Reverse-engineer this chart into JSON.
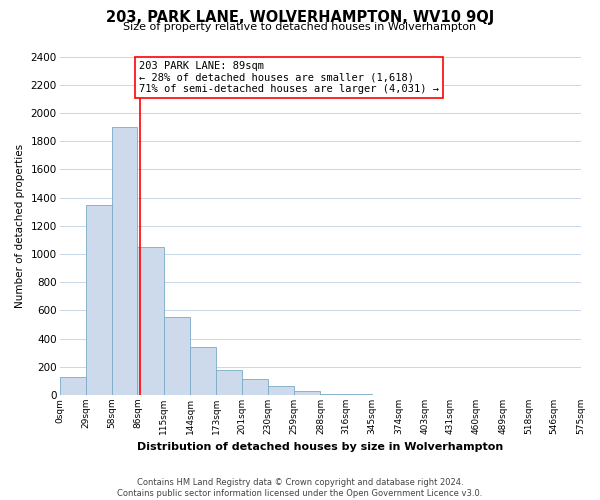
{
  "title": "203, PARK LANE, WOLVERHAMPTON, WV10 9QJ",
  "subtitle": "Size of property relative to detached houses in Wolverhampton",
  "xlabel": "Distribution of detached houses by size in Wolverhampton",
  "ylabel": "Number of detached properties",
  "bar_color": "#ccdaeb",
  "bar_edge_color": "#7aaac8",
  "bin_edges": [
    0,
    29,
    58,
    86,
    115,
    144,
    173,
    201,
    230,
    259,
    288,
    316,
    345,
    374,
    403,
    431,
    460,
    489,
    518,
    546,
    575
  ],
  "bin_labels": [
    "0sqm",
    "29sqm",
    "58sqm",
    "86sqm",
    "115sqm",
    "144sqm",
    "173sqm",
    "201sqm",
    "230sqm",
    "259sqm",
    "288sqm",
    "316sqm",
    "345sqm",
    "374sqm",
    "403sqm",
    "431sqm",
    "460sqm",
    "489sqm",
    "518sqm",
    "546sqm",
    "575sqm"
  ],
  "bar_heights": [
    130,
    1350,
    1900,
    1050,
    550,
    340,
    175,
    115,
    65,
    30,
    10,
    5,
    2,
    1,
    1,
    0,
    1,
    0,
    1,
    0
  ],
  "red_line_x": 89,
  "annotation_title": "203 PARK LANE: 89sqm",
  "annotation_line1": "← 28% of detached houses are smaller (1,618)",
  "annotation_line2": "71% of semi-detached houses are larger (4,031) →",
  "ylim": [
    0,
    2400
  ],
  "yticks": [
    0,
    200,
    400,
    600,
    800,
    1000,
    1200,
    1400,
    1600,
    1800,
    2000,
    2200,
    2400
  ],
  "footer_line1": "Contains HM Land Registry data © Crown copyright and database right 2024.",
  "footer_line2": "Contains public sector information licensed under the Open Government Licence v3.0.",
  "background_color": "#ffffff",
  "grid_color": "#c8d8e8"
}
